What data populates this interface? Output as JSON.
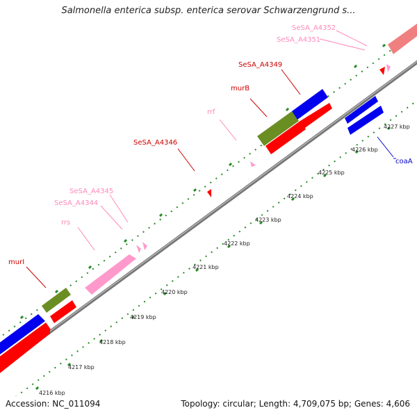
{
  "title": "Salmonella enterica subsp. enterica serovar Schwarzengrund s...",
  "footer": {
    "accession": "Accession: NC_011094",
    "topology": "Topology: circular; Length: 4,709,075 bp; Genes: 4,606"
  },
  "colors": {
    "cds": "#ff0000",
    "blue_cds": "#0000ee",
    "olive_cds": "#6b8e23",
    "rna": "#ff99cc",
    "salmon": "#f08080",
    "backbone": "#888888",
    "ticks": "#228b22"
  },
  "ticks": [
    "4216 kbp",
    "4217 kbp",
    "4218 kbp",
    "4219 kbp",
    "4220 kbp",
    "4221 kbp",
    "4222 kbp",
    "4223 kbp",
    "4224 kbp",
    "4225 kbp",
    "4226 kbp",
    "4227 kbp"
  ],
  "gene_labels": [
    {
      "name": "murI",
      "color": "#cc0000"
    },
    {
      "name": "rrs",
      "color": "#ff88bb"
    },
    {
      "name": "SeSA_A4344",
      "color": "#ff88bb"
    },
    {
      "name": "SeSA_A4345",
      "color": "#ff88bb"
    },
    {
      "name": "SeSA_A4346",
      "color": "#cc0000"
    },
    {
      "name": "rrf",
      "color": "#ff88bb"
    },
    {
      "name": "murB",
      "color": "#cc0000"
    },
    {
      "name": "SeSA_A4349",
      "color": "#cc0000"
    },
    {
      "name": "SeSA_A4351",
      "color": "#ff88bb"
    },
    {
      "name": "SeSA_A4352",
      "color": "#ff88bb"
    },
    {
      "name": "coaA",
      "color": "#0000cc"
    }
  ]
}
